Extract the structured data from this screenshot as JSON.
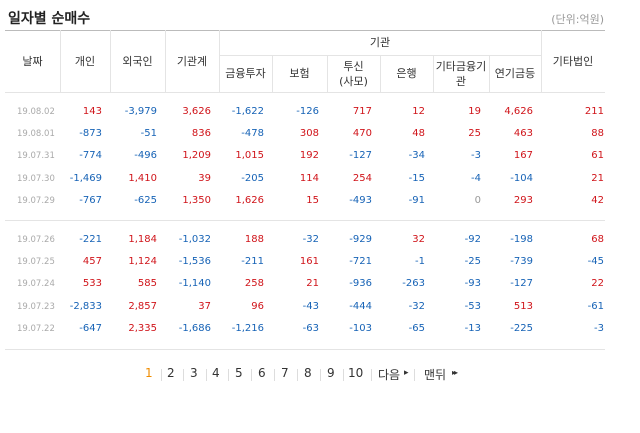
{
  "header": {
    "title": "일자별 순매수",
    "unit": "(단위:억원)"
  },
  "table": {
    "columns": [
      "날짜",
      "개인",
      "외국인",
      "기관계",
      "금융투자",
      "보험",
      "투신\n(사모)",
      "은행",
      "기타금융기\n관",
      "연기금등",
      "기타법인"
    ],
    "group_header": "기관",
    "row_groups": [
      [
        [
          "19.08.02",
          "143",
          "-3,979",
          "3,626",
          "-1,622",
          "-126",
          "717",
          "12",
          "19",
          "4,626",
          "211"
        ],
        [
          "19.08.01",
          "-873",
          "-51",
          "836",
          "-478",
          "308",
          "470",
          "48",
          "25",
          "463",
          "88"
        ],
        [
          "19.07.31",
          "-774",
          "-496",
          "1,209",
          "1,015",
          "192",
          "-127",
          "-34",
          "-3",
          "167",
          "61"
        ],
        [
          "19.07.30",
          "-1,469",
          "1,410",
          "39",
          "-205",
          "114",
          "254",
          "-15",
          "-4",
          "-104",
          "21"
        ],
        [
          "19.07.29",
          "-767",
          "-625",
          "1,350",
          "1,626",
          "15",
          "-493",
          "-91",
          "0",
          "293",
          "42"
        ]
      ],
      [
        [
          "19.07.26",
          "-221",
          "1,184",
          "-1,032",
          "188",
          "-32",
          "-929",
          "32",
          "-92",
          "-198",
          "68"
        ],
        [
          "19.07.25",
          "457",
          "1,124",
          "-1,536",
          "-211",
          "161",
          "-721",
          "-1",
          "-25",
          "-739",
          "-45"
        ],
        [
          "19.07.24",
          "533",
          "585",
          "-1,140",
          "258",
          "21",
          "-936",
          "-263",
          "-93",
          "-127",
          "22"
        ],
        [
          "19.07.23",
          "-2,833",
          "2,857",
          "37",
          "96",
          "-43",
          "-444",
          "-32",
          "-53",
          "513",
          "-61"
        ],
        [
          "19.07.22",
          "-647",
          "2,335",
          "-1,686",
          "-1,216",
          "-63",
          "-103",
          "-65",
          "-13",
          "-225",
          "-3"
        ]
      ]
    ]
  },
  "pagination": {
    "pages": [
      "1",
      "2",
      "3",
      "4",
      "5",
      "6",
      "7",
      "8",
      "9",
      "10"
    ],
    "next": "다음",
    "last": "맨뒤"
  }
}
